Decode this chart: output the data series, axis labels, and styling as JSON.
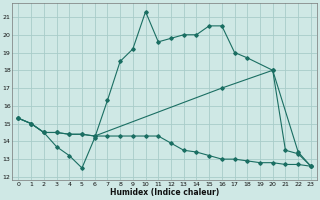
{
  "xlabel": "Humidex (Indice chaleur)",
  "xlim": [
    -0.5,
    23.5
  ],
  "ylim": [
    11.8,
    21.8
  ],
  "yticks": [
    12,
    13,
    14,
    15,
    16,
    17,
    18,
    19,
    20,
    21
  ],
  "xticks": [
    0,
    1,
    2,
    3,
    4,
    5,
    6,
    7,
    8,
    9,
    10,
    11,
    12,
    13,
    14,
    15,
    16,
    17,
    18,
    19,
    20,
    21,
    22,
    23
  ],
  "bg_color": "#cfe8e5",
  "grid_color": "#a8ccc9",
  "line_color": "#1a6e62",
  "line1_x": [
    0,
    1,
    2,
    3,
    4,
    5,
    6,
    7,
    8,
    9,
    10,
    11,
    12,
    13,
    14,
    15,
    16,
    17,
    18,
    20,
    21,
    22,
    23
  ],
  "line1_y": [
    15.3,
    15.0,
    14.5,
    13.7,
    13.2,
    12.5,
    14.2,
    16.3,
    18.5,
    19.2,
    21.3,
    19.6,
    19.8,
    20.0,
    20.0,
    20.5,
    20.5,
    19.0,
    18.7,
    18.0,
    13.5,
    13.3,
    12.6
  ],
  "line2_x": [
    0,
    1,
    2,
    3,
    4,
    5,
    6,
    7,
    8,
    9,
    10,
    11,
    12,
    13,
    14,
    15,
    16,
    17,
    18,
    19,
    20,
    21,
    22,
    23
  ],
  "line2_y": [
    15.3,
    15.0,
    14.5,
    14.5,
    14.4,
    14.4,
    14.3,
    14.3,
    14.3,
    14.3,
    14.3,
    14.3,
    13.9,
    13.5,
    13.4,
    13.2,
    13.0,
    13.0,
    12.9,
    12.8,
    12.8,
    12.7,
    12.7,
    12.6
  ],
  "line3_x": [
    0,
    1,
    2,
    3,
    4,
    5,
    6,
    16,
    20,
    22,
    23
  ],
  "line3_y": [
    15.3,
    15.0,
    14.5,
    14.5,
    14.4,
    14.4,
    14.3,
    17.0,
    18.0,
    13.4,
    12.6
  ]
}
